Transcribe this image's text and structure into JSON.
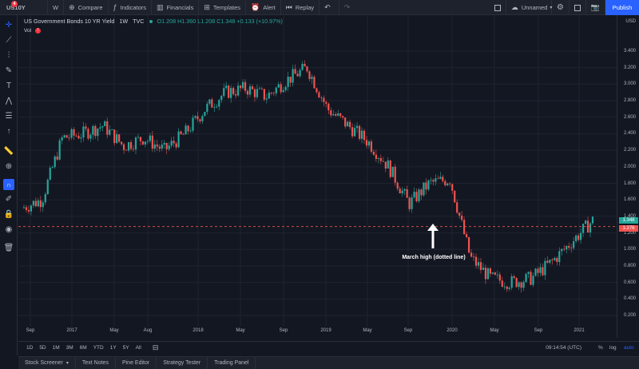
{
  "toolbar": {
    "symbol": "US10Y",
    "badge": "4",
    "interval": "W",
    "compare": "Compare",
    "indicators": "Indicators",
    "financials": "Financials",
    "templates": "Templates",
    "alert": "Alert",
    "replay": "Replay",
    "layout_name": "Unnamed",
    "publish": "Publish"
  },
  "legend": {
    "title": "US Government Bonds 10 YR Yield",
    "interval": "1W",
    "source": "TVC",
    "ohlc": "O1.208  H1.360  L1.208  C1.348  +0.133 (+10.97%)",
    "vol_label": "Vol",
    "vol_warning": "!"
  },
  "axis": {
    "currency": "USD",
    "price_labels": [
      "3.400",
      "3.200",
      "3.000",
      "2.800",
      "2.600",
      "2.400",
      "2.200",
      "2.000",
      "1.800",
      "1.600",
      "1.400",
      "1.200",
      "1.000",
      "0.800",
      "0.600",
      "0.400",
      "0.200"
    ],
    "last_price": "1.348",
    "line_price": "1.276",
    "time_labels": [
      "Sep",
      "2017",
      "May",
      "Aug",
      "2018",
      "May",
      "Sep",
      "2019",
      "May",
      "Sep",
      "2020",
      "May",
      "Sep",
      "2021"
    ]
  },
  "annotation": {
    "text": "March high (dotted line)"
  },
  "chart_data": {
    "type": "candlestick",
    "ylim": [
      0.1,
      3.5
    ],
    "horizontal_line": 1.276,
    "x": [
      "2016-07",
      "2016-09",
      "2016-11",
      "2017-01",
      "2017-03",
      "2017-05",
      "2017-07",
      "2017-09",
      "2017-11",
      "2018-01",
      "2018-03",
      "2018-05",
      "2018-07",
      "2018-09",
      "2018-11",
      "2019-01",
      "2019-03",
      "2019-05",
      "2019-07",
      "2019-09",
      "2019-11",
      "2020-01",
      "2020-03",
      "2020-05",
      "2020-07",
      "2020-09",
      "2020-11",
      "2021-01",
      "2021-02"
    ],
    "series": [
      {
        "values": [
          1.5,
          1.6,
          2.35,
          2.4,
          2.5,
          2.25,
          2.35,
          2.2,
          2.4,
          2.7,
          2.9,
          2.95,
          2.85,
          3.05,
          3.2,
          2.7,
          2.5,
          2.3,
          2.0,
          1.55,
          1.8,
          1.85,
          0.9,
          0.65,
          0.6,
          0.65,
          0.85,
          1.1,
          1.35
        ]
      }
    ]
  },
  "range": {
    "buttons": [
      "1D",
      "5D",
      "1M",
      "3M",
      "6M",
      "YTD",
      "1Y",
      "5Y",
      "All"
    ],
    "clock": "09:14:54 (UTC)",
    "percent": "%",
    "log": "log",
    "auto": "auto"
  },
  "bottom_tabs": [
    "Stock Screener",
    "Text Notes",
    "Pine Editor",
    "Strategy Tester",
    "Trading Panel"
  ],
  "colors": {
    "up": "#26a69a",
    "down": "#ef5350",
    "accent": "#2962ff",
    "background": "#131722"
  }
}
